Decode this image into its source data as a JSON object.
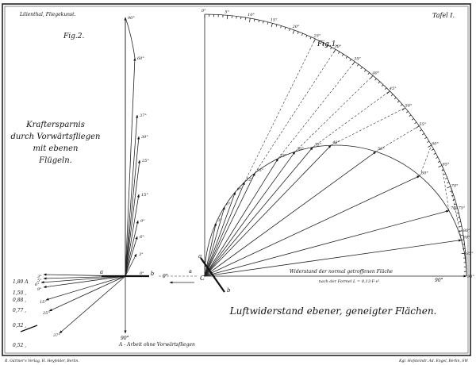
{
  "header": {
    "author_title": "Lilienthal, Fliegekunst.",
    "plate": "Tafel I."
  },
  "fig2": {
    "label": "Fig.2.",
    "caption": [
      "Kraftersparnis",
      "durch Vorwärtsfliegen",
      "mit ebenen",
      "Flügeln."
    ],
    "plate_ends": [
      "a",
      "b"
    ],
    "origin_label": "0°",
    "up_vectors": [
      "90°",
      "60°",
      "37°",
      "30°",
      "25°",
      "15°",
      "9°",
      "6°",
      "3°"
    ],
    "down_vectors": [
      "3°",
      "5°",
      "6°",
      "9°",
      "15°",
      "25°",
      "37°"
    ],
    "bottom_label": "90°",
    "ratios": [
      "1,80 A",
      "1,50 ,",
      "0,88 ,",
      "0,77 ,",
      "0,32 ,",
      "0,52 ,"
    ],
    "legend": "A - Arbeit ohne Vorwärtsfliegen"
  },
  "fig1": {
    "label": "Fig.1.",
    "scale_labels": [
      "0°",
      "5°",
      "10°",
      "15°",
      "20°",
      "25°",
      "30°",
      "35°",
      "40°",
      "45°",
      "50°",
      "55°",
      "60°",
      "65°",
      "70°",
      "75°",
      "80°",
      "85°",
      "90°"
    ],
    "curve_points": [
      "3°",
      "6°",
      "9°",
      "12°",
      "15°",
      "25°",
      "30°",
      "35°",
      "40°",
      "50°",
      "60°",
      "70°",
      "80°"
    ],
    "plate_ends": [
      "a",
      "b"
    ],
    "origin": "C",
    "velocity_label": "v",
    "angle_label": "α",
    "zero_label": "0°",
    "baseline_text": "Widerstand der normal getroffenen Fläche",
    "formula_text": "nach der Formel L = 0,13·F·v²"
  },
  "title": "Luftwiderstand ebener, geneigter Flächen.",
  "footer": {
    "publisher": "R. Gärtner's Verlag, H. Heyfelder, Berlin.",
    "printer": "Kgl. Hofsteindr. Ad. Engel, Berlin, SW"
  }
}
